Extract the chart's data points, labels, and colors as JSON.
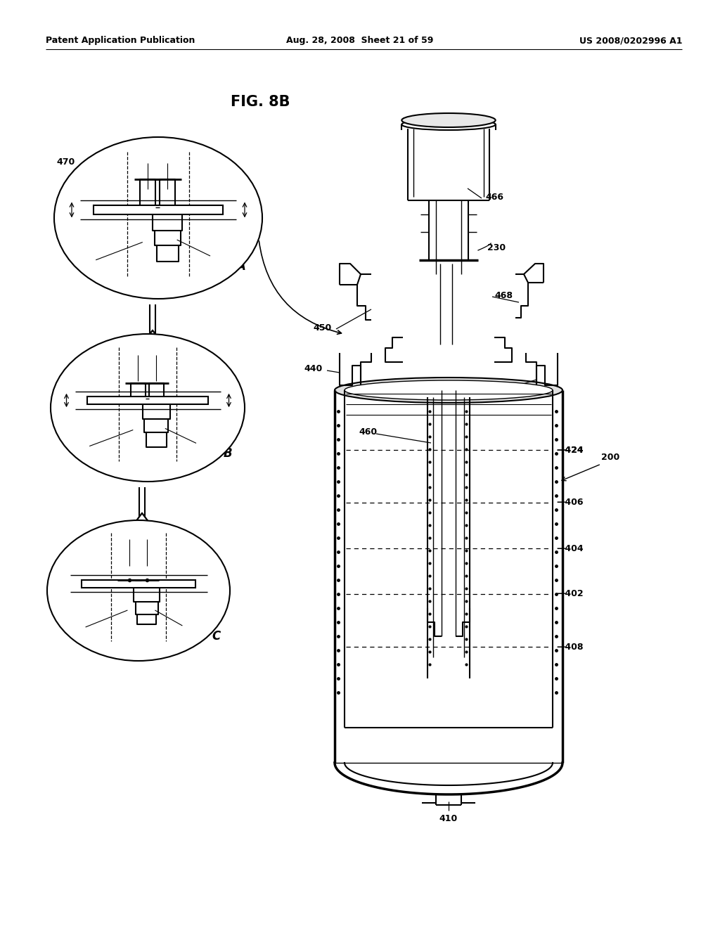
{
  "bg_color": "#ffffff",
  "title_text": "FIG. 8B",
  "header_left": "Patent Application Publication",
  "header_center": "Aug. 28, 2008  Sheet 21 of 59",
  "header_right": "US 2008/0202996 A1"
}
